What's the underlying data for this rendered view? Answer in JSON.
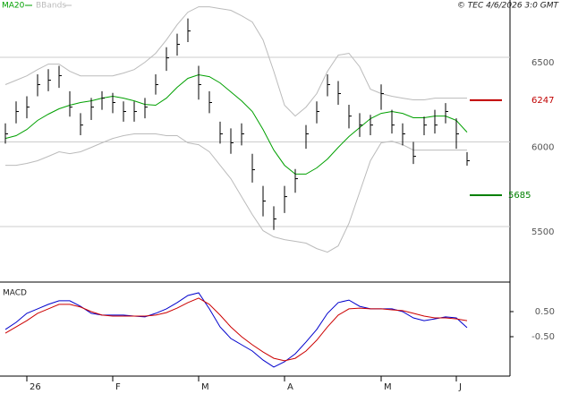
{
  "chart_data": {
    "type": "ohlc",
    "annotation": "© TEC 4/6/2026 3:0 GMT",
    "x": [
      0,
      1,
      2,
      3,
      4,
      5,
      6,
      7,
      8,
      9,
      10,
      11,
      12,
      13,
      14,
      15,
      16,
      17,
      18,
      19,
      20,
      21,
      22,
      23,
      24,
      25,
      26,
      27,
      28,
      29,
      30,
      31,
      32,
      33,
      34,
      35,
      36,
      37,
      38,
      39,
      40,
      41,
      42,
      43
    ],
    "xlim": [
      -0.5,
      47
    ],
    "high": [
      6110,
      6240,
      6270,
      6400,
      6430,
      6450,
      6300,
      6170,
      6260,
      6300,
      6290,
      6240,
      6240,
      6260,
      6400,
      6560,
      6640,
      6730,
      6450,
      6300,
      6120,
      6080,
      6110,
      5930,
      5740,
      5620,
      5740,
      5840,
      6100,
      6240,
      6400,
      6360,
      6220,
      6170,
      6160,
      6340,
      6190,
      6110,
      6000,
      6150,
      6190,
      6230,
      6140,
      5940
    ],
    "low": [
      5990,
      6110,
      6140,
      6270,
      6300,
      6320,
      6150,
      6040,
      6130,
      6190,
      6170,
      6120,
      6120,
      6140,
      6280,
      6420,
      6510,
      6590,
      6250,
      6170,
      5990,
      5930,
      5980,
      5760,
      5560,
      5480,
      5580,
      5700,
      5960,
      6110,
      6270,
      6220,
      6080,
      6030,
      6040,
      6190,
      6050,
      5980,
      5870,
      6040,
      6050,
      6110,
      5960,
      5860
    ],
    "close": [
      6048,
      6180,
      6206,
      6339,
      6365,
      6392,
      6206,
      6100,
      6206,
      6259,
      6233,
      6180,
      6180,
      6206,
      6339,
      6497,
      6577,
      6656,
      6339,
      6233,
      6048,
      5995,
      6048,
      5836,
      5651,
      5545,
      5677,
      5783,
      6048,
      6180,
      6339,
      6286,
      6153,
      6100,
      6100,
      6286,
      6100,
      6048,
      5915,
      6100,
      6100,
      6180,
      6048,
      5889
    ],
    "color": "#000000",
    "ylim": [
      5172,
      6839
    ],
    "yticks": [
      5500,
      6000,
      6500
    ],
    "grid": true,
    "series": [
      {
        "name": "MA20",
        "color": "#00a000",
        "values": [
          6021,
          6037,
          6074,
          6127,
          6164,
          6196,
          6217,
          6233,
          6243,
          6259,
          6270,
          6259,
          6243,
          6222,
          6217,
          6259,
          6323,
          6376,
          6397,
          6386,
          6349,
          6296,
          6243,
          6180,
          6074,
          5952,
          5862,
          5810,
          5810,
          5847,
          5899,
          5968,
          6032,
          6085,
          6138,
          6169,
          6180,
          6169,
          6143,
          6143,
          6153,
          6153,
          6127,
          6058
        ]
      },
      {
        "name": "BBands",
        "color": "#bbbbbb",
        "upper": [
          6339,
          6365,
          6391,
          6428,
          6460,
          6460,
          6418,
          6391,
          6391,
          6391,
          6391,
          6407,
          6428,
          6471,
          6524,
          6603,
          6693,
          6767,
          6799,
          6799,
          6788,
          6778,
          6746,
          6709,
          6603,
          6418,
          6217,
          6153,
          6206,
          6286,
          6418,
          6513,
          6524,
          6444,
          6312,
          6286,
          6270,
          6259,
          6249,
          6249,
          6259,
          6259,
          6259,
          6259
        ],
        "lower": [
          5862,
          5862,
          5873,
          5889,
          5915,
          5942,
          5931,
          5942,
          5968,
          5995,
          6021,
          6037,
          6048,
          6048,
          6048,
          6037,
          6037,
          5995,
          5984,
          5942,
          5862,
          5783,
          5677,
          5571,
          5476,
          5439,
          5423,
          5413,
          5402,
          5370,
          5349,
          5386,
          5519,
          5704,
          5889,
          5995,
          6005,
          5984,
          5952,
          5952,
          5952,
          5952,
          5952,
          5952
        ]
      }
    ],
    "levels": [
      {
        "value": 6247,
        "color": "#c00000"
      },
      {
        "value": 5685,
        "color": "#008000"
      }
    ],
    "macd": {
      "title": "MACD",
      "ylim": [
        -2.07,
        1.57
      ],
      "yticks": [
        {
          "value": 0.5,
          "label": "0.50"
        },
        {
          "value": -0.5,
          "label": "-0.50"
        }
      ],
      "series": [
        {
          "color": "#0000cc",
          "values": [
            -0.21,
            0.07,
            0.43,
            0.61,
            0.79,
            0.93,
            0.93,
            0.71,
            0.43,
            0.36,
            0.36,
            0.36,
            0.32,
            0.29,
            0.43,
            0.61,
            0.86,
            1.14,
            1.25,
            0.61,
            -0.11,
            -0.57,
            -0.82,
            -1.07,
            -1.43,
            -1.71,
            -1.5,
            -1.18,
            -0.71,
            -0.21,
            0.43,
            0.86,
            0.96,
            0.71,
            0.61,
            0.61,
            0.61,
            0.5,
            0.25,
            0.14,
            0.21,
            0.29,
            0.25,
            -0.14
          ]
        },
        {
          "color": "#cc0000",
          "values": [
            -0.36,
            -0.11,
            0.14,
            0.43,
            0.61,
            0.79,
            0.79,
            0.68,
            0.5,
            0.36,
            0.32,
            0.32,
            0.32,
            0.32,
            0.36,
            0.46,
            0.64,
            0.86,
            1.04,
            0.79,
            0.36,
            -0.11,
            -0.5,
            -0.82,
            -1.11,
            -1.36,
            -1.46,
            -1.36,
            -1.07,
            -0.64,
            -0.11,
            0.36,
            0.61,
            0.64,
            0.61,
            0.61,
            0.57,
            0.54,
            0.43,
            0.32,
            0.25,
            0.25,
            0.21,
            0.14
          ]
        }
      ],
      "xticks": [
        {
          "value": 2,
          "label": "26"
        },
        {
          "value": 10,
          "label": "F"
        },
        {
          "value": 18,
          "label": "M"
        },
        {
          "value": 26,
          "label": "A"
        },
        {
          "value": 35,
          "label": "M"
        },
        {
          "value": 42,
          "label": "J"
        }
      ]
    }
  }
}
